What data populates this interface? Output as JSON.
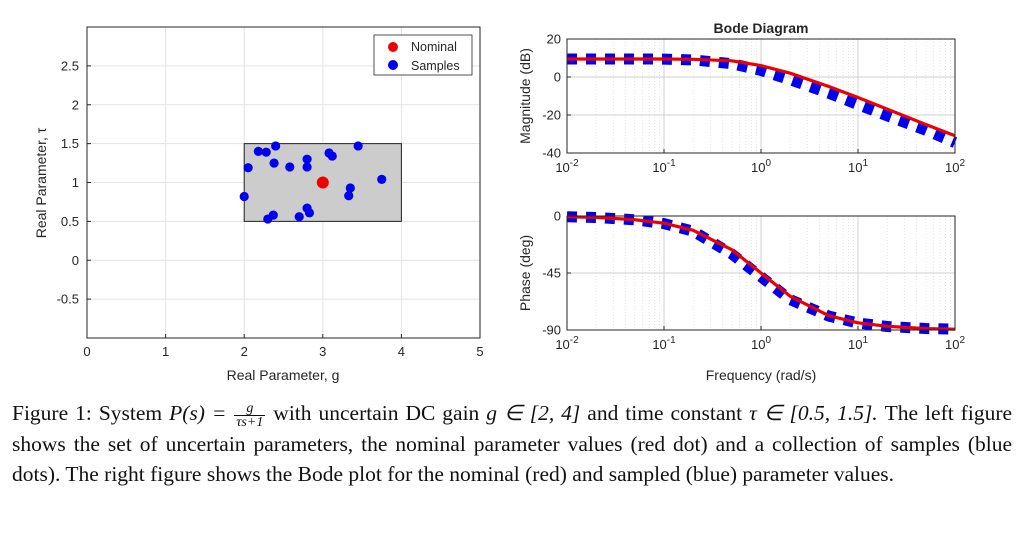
{
  "chart_data": [
    {
      "type": "scatter",
      "title": "",
      "xlabel": "Real Parameter, g",
      "ylabel": "Real Parameter, τ",
      "xlim": [
        0,
        5
      ],
      "ylim": [
        -1.0,
        3.0
      ],
      "xticks": [
        "0",
        "1",
        "2",
        "3",
        "4",
        "5"
      ],
      "yticks": [
        "-0.5",
        "0",
        "0.5",
        "1",
        "1.5",
        "2",
        "2.5"
      ],
      "grid": true,
      "legend_position": "top-right",
      "uncertainty_box": {
        "g": [
          2,
          4
        ],
        "tau": [
          0.5,
          1.5
        ],
        "color": "#cccccc"
      },
      "series": [
        {
          "name": "Nominal",
          "color": "#ee0000",
          "points": [
            [
              3.0,
              1.0
            ]
          ]
        },
        {
          "name": "Samples",
          "color": "#0000ee",
          "points": [
            [
              2.0,
              0.82
            ],
            [
              2.05,
              1.19
            ],
            [
              2.18,
              1.4
            ],
            [
              2.28,
              1.39
            ],
            [
              2.4,
              1.47
            ],
            [
              2.38,
              1.25
            ],
            [
              2.58,
              1.2
            ],
            [
              2.8,
              1.3
            ],
            [
              2.8,
              1.2
            ],
            [
              3.08,
              1.38
            ],
            [
              3.12,
              1.34
            ],
            [
              3.45,
              1.47
            ],
            [
              3.75,
              1.04
            ],
            [
              3.35,
              0.93
            ],
            [
              3.33,
              0.83
            ],
            [
              2.3,
              0.53
            ],
            [
              2.37,
              0.58
            ],
            [
              2.7,
              0.56
            ],
            [
              2.8,
              0.67
            ],
            [
              2.83,
              0.61
            ]
          ]
        }
      ]
    },
    {
      "type": "line",
      "title": "Bode Diagram",
      "xlabel": "Frequency (rad/s)",
      "ylabel": "Magnitude (dB)",
      "xscale": "log",
      "xlim": [
        0.01,
        100
      ],
      "ylim": [
        -40,
        20
      ],
      "xticks": [
        "10^-2",
        "10^-1",
        "10^0",
        "10^1",
        "10^2"
      ],
      "yticks": [
        "-40",
        "-20",
        "0",
        "20"
      ],
      "grid": true,
      "series": [
        {
          "name": "",
          "color": "#0000ee",
          "style": "thick dashed",
          "freq": [
            0.01,
            0.02,
            0.05,
            0.1,
            0.2,
            0.5,
            1,
            2,
            5,
            10,
            20,
            50,
            100
          ],
          "values": [
            9.5,
            9.5,
            9.5,
            9.4,
            9.0,
            7.0,
            3.5,
            -1.5,
            -8.5,
            -14.5,
            -20.5,
            -28.0,
            -34.5
          ]
        },
        {
          "name": "",
          "color": "#ee0000",
          "style": "solid",
          "freq": [
            0.01,
            0.02,
            0.05,
            0.1,
            0.2,
            0.5,
            1,
            2,
            5,
            10,
            20,
            50,
            100
          ],
          "values": [
            9.5,
            9.5,
            9.5,
            9.5,
            9.3,
            8.5,
            6.0,
            2.0,
            -5.0,
            -10.8,
            -16.9,
            -25.0,
            -30.9
          ]
        }
      ]
    },
    {
      "type": "line",
      "title": "",
      "xlabel": "Frequency (rad/s)",
      "ylabel": "Phase (deg)",
      "xscale": "log",
      "xlim": [
        0.01,
        100
      ],
      "ylim": [
        -90,
        0
      ],
      "xticks": [
        "10^-2",
        "10^-1",
        "10^0",
        "10^1",
        "10^2"
      ],
      "yticks": [
        "-90",
        "-45",
        "0"
      ],
      "grid": true,
      "series": [
        {
          "name": "",
          "color": "#0000ee",
          "style": "thick dashed",
          "freq": [
            0.01,
            0.02,
            0.05,
            0.1,
            0.2,
            0.5,
            1,
            2,
            5,
            10,
            20,
            50,
            100
          ],
          "values": [
            -0.6,
            -1.2,
            -3.0,
            -6.0,
            -12.0,
            -30.0,
            -48.0,
            -66.0,
            -79.0,
            -84.5,
            -87.2,
            -88.8,
            -89.4
          ]
        },
        {
          "name": "",
          "color": "#ee0000",
          "style": "solid",
          "freq": [
            0.01,
            0.02,
            0.05,
            0.1,
            0.2,
            0.5,
            1,
            2,
            5,
            10,
            20,
            50,
            100
          ],
          "values": [
            -0.6,
            -1.1,
            -2.9,
            -5.7,
            -11.3,
            -26.6,
            -45.0,
            -63.4,
            -78.7,
            -84.3,
            -87.1,
            -88.9,
            -89.4
          ]
        }
      ]
    }
  ],
  "legend": {
    "nominal": "Nominal",
    "samples": "Samples"
  },
  "caption": {
    "label": "Figure 1:",
    "part1": "System ",
    "math_lhs": "P(s) = ",
    "frac_num": "g",
    "frac_den": "τs+1",
    "part2": " with uncertain DC gain ",
    "gain_range": "g ∈ [2, 4]",
    "part3": " and time constant ",
    "tau_range": "τ ∈ [0.5, 1.5].",
    "part4": " The left figure shows the set of uncertain parameters, the nominal parameter values (red dot) and a collection of samples (blue dots). The right figure shows the Bode plot for the nominal (red) and sampled (blue) parameter values."
  }
}
